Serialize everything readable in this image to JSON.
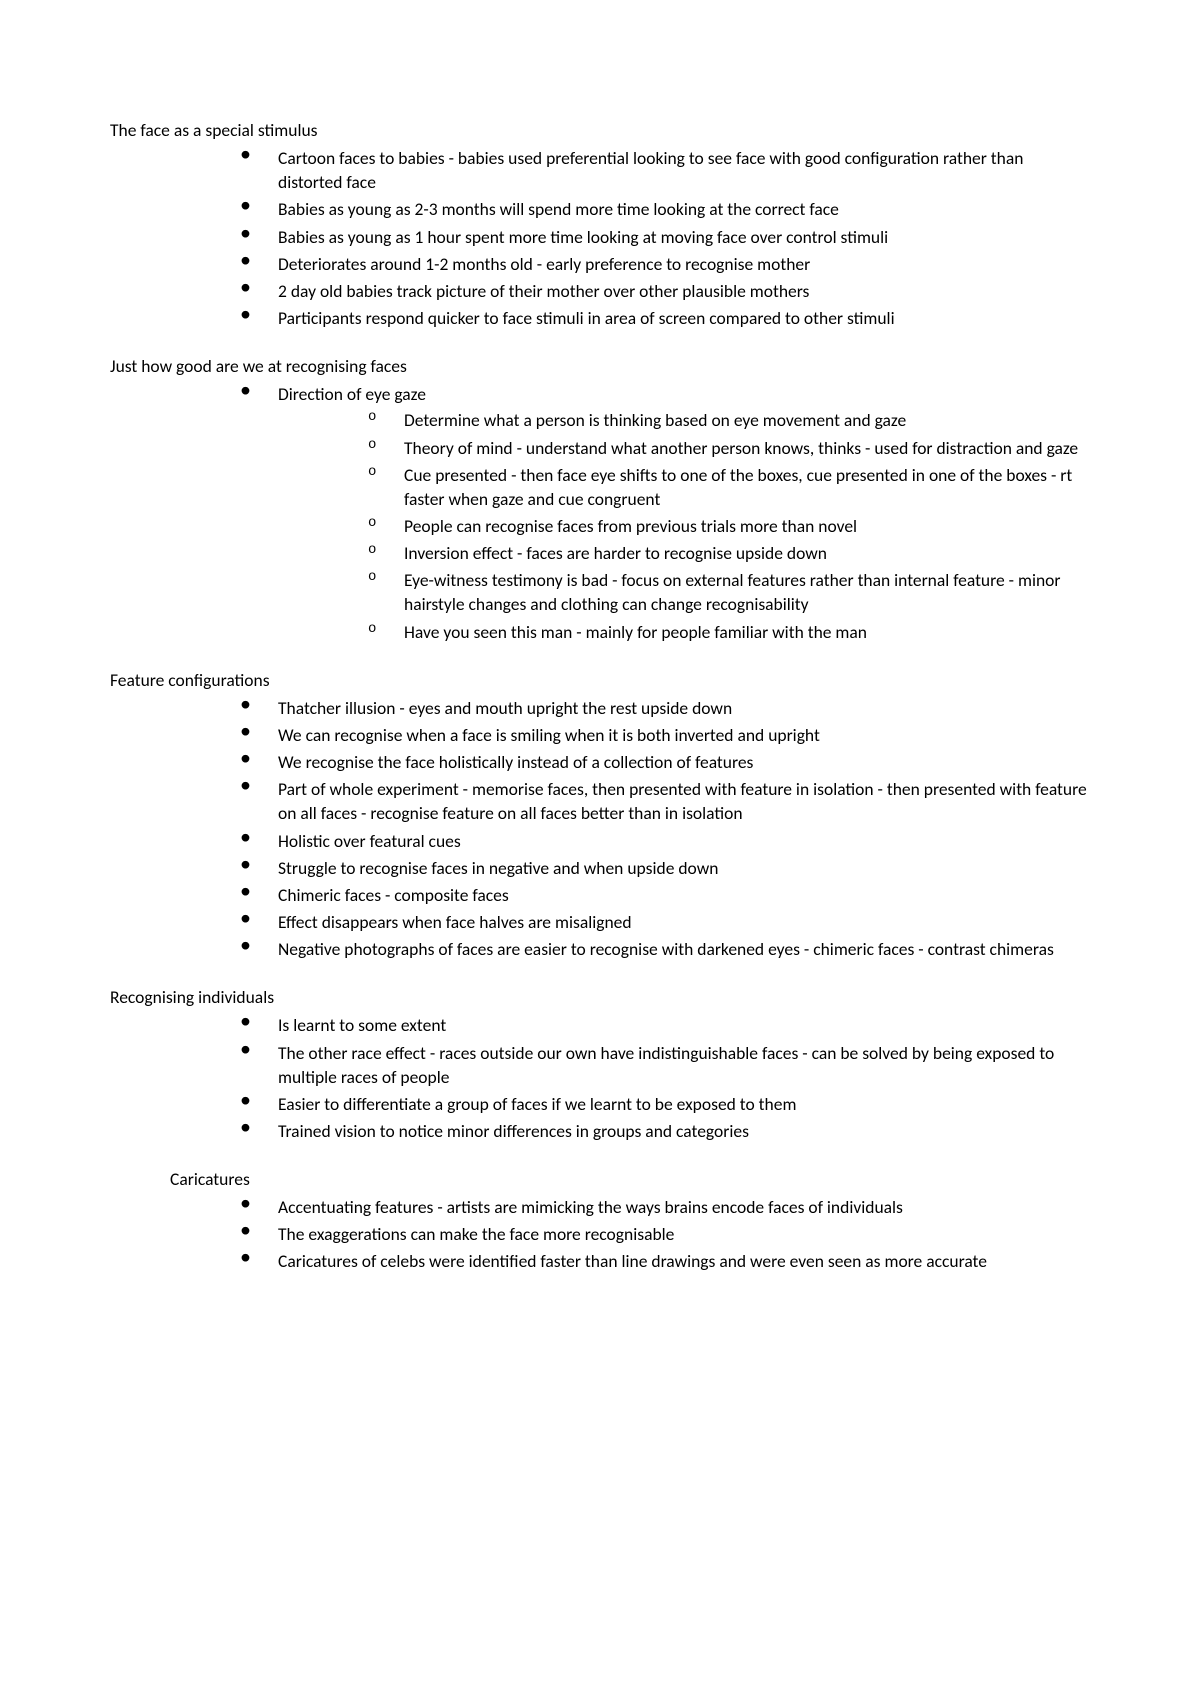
{
  "sections": [
    {
      "id": "special-stimulus",
      "heading": "The face as a special stimulus",
      "indent": false,
      "items": [
        {
          "text": "Cartoon faces to babies - babies used preferential looking to see face with good configuration rather than distorted face"
        },
        {
          "text": "Babies as young as 2-3 months will spend more time looking at the correct face"
        },
        {
          "text": "Babies as young as 1 hour spent more time looking at moving face over control stimuli"
        },
        {
          "text": "Deteriorates around 1-2 months old - early preference to recognise mother"
        },
        {
          "text": "2 day old babies track picture of their mother over other plausible mothers"
        },
        {
          "text": "Participants respond quicker to face stimuli in area of screen compared to other stimuli"
        }
      ]
    },
    {
      "id": "how-good",
      "heading": "Just how good are we at recognising faces",
      "indent": false,
      "items": [
        {
          "text": "Direction of eye gaze",
          "sub": [
            {
              "text": "Determine what a person is thinking based on eye movement and gaze"
            },
            {
              "text": "Theory of mind - understand what another person knows, thinks - used for distraction and gaze"
            },
            {
              "text": "Cue presented - then face eye shifts to one of the boxes, cue presented in one of the boxes - rt faster when gaze and cue congruent"
            },
            {
              "text": "People can recognise faces from previous trials more than novel"
            },
            {
              "text": "Inversion effect - faces are harder to recognise upside down"
            },
            {
              "text": "Eye-witness testimony is bad - focus on external features rather than internal feature  - minor hairstyle changes and clothing can change recognisability"
            },
            {
              "text": "Have you seen this man - mainly for people familiar with the man"
            }
          ]
        }
      ]
    },
    {
      "id": "feature-config",
      "heading": "Feature configurations",
      "indent": false,
      "items": [
        {
          "text": "Thatcher illusion - eyes and mouth upright the rest upside down"
        },
        {
          "text": "We can recognise when a face is smiling when it is both inverted and upright"
        },
        {
          "text": "We recognise the face holistically instead of a collection of features"
        },
        {
          "text": "Part of whole experiment - memorise faces, then presented with feature in isolation - then presented with feature on all faces - recognise feature on all faces better than in isolation"
        },
        {
          "text": "Holistic over featural cues"
        },
        {
          "text": "Struggle to recognise faces in negative and when upside down"
        },
        {
          "text": "Chimeric faces - composite faces"
        },
        {
          "text": "Effect disappears when face halves are misaligned"
        },
        {
          "text": "Negative photographs of faces are easier to recognise with darkened eyes - chimeric faces - contrast chimeras"
        }
      ]
    },
    {
      "id": "recognising-individuals",
      "heading": "Recognising individuals",
      "indent": false,
      "items": [
        {
          "text": "Is learnt to some extent"
        },
        {
          "text": "The other race effect - races outside our own have indistinguishable faces - can be solved by being exposed to multiple races of people"
        },
        {
          "text": "Easier to differentiate a group of faces if we learnt to be exposed to them"
        },
        {
          "text": "Trained vision to notice minor differences in groups and categories"
        }
      ]
    },
    {
      "id": "caricatures",
      "heading": "Caricatures",
      "indent": true,
      "items": [
        {
          "text": "Accentuating features - artists are mimicking the ways brains encode faces of individuals"
        },
        {
          "text": "The exaggerations can make the face more recognisable"
        },
        {
          "text": "Caricatures of celebs were identified faster than line drawings and were even seen as more accurate"
        }
      ]
    }
  ]
}
